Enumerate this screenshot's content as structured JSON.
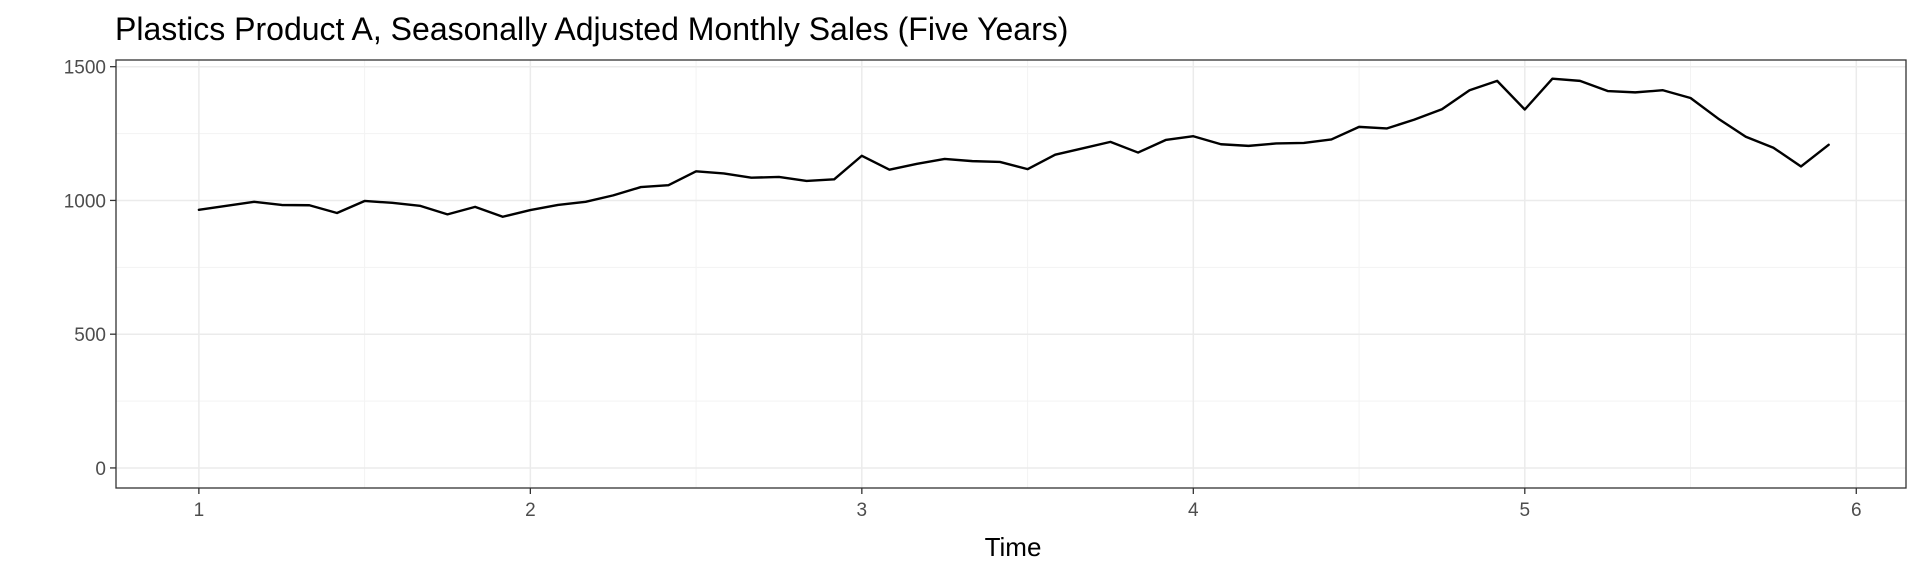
{
  "chart_data": {
    "type": "line",
    "title": "Plastics Product A, Seasonally Adjusted Monthly Sales (Five Years)",
    "xlabel": "Time",
    "ylabel": "",
    "xlim": [
      0.75,
      6.15
    ],
    "ylim": [
      -75,
      1525
    ],
    "x_ticks": [
      1,
      2,
      3,
      4,
      5,
      6
    ],
    "x_tick_labels": [
      "1",
      "2",
      "3",
      "4",
      "5",
      "6"
    ],
    "y_ticks": [
      0,
      500,
      1000,
      1500
    ],
    "y_tick_labels": [
      "0",
      "500",
      "1000",
      "1500"
    ],
    "grid": true,
    "legend": "none",
    "series": [
      {
        "color": "#000000",
        "x_start": 1,
        "x_step": 0.0833333,
        "values": [
          965,
          980,
          995,
          983,
          982,
          953,
          998,
          991,
          980,
          948,
          976,
          939,
          964,
          983,
          995,
          1019,
          1050,
          1057,
          1109,
          1101,
          1085,
          1088,
          1073,
          1079,
          1167,
          1115,
          1137,
          1155,
          1147,
          1144,
          1117,
          1171,
          1195,
          1219,
          1179,
          1226,
          1240,
          1210,
          1204,
          1213,
          1215,
          1228,
          1275,
          1269,
          1302,
          1341,
          1412,
          1447,
          1340,
          1455,
          1447,
          1409,
          1404,
          1412,
          1383,
          1306,
          1238,
          1197,
          1127,
          1208
        ]
      }
    ]
  }
}
